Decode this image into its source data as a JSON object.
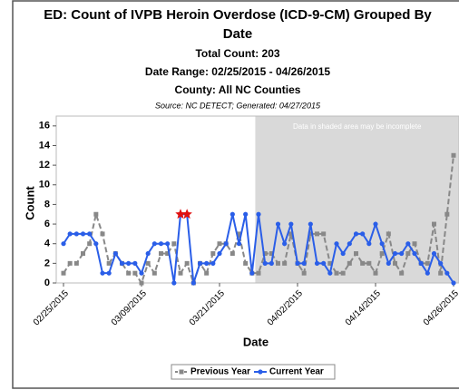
{
  "chart_data": {
    "type": "line",
    "title": "ED: Count of IVPB Heroin Overdose (ICD-9-CM) Grouped By",
    "title_line2": "Date",
    "subtitles": [
      "Total Count: 203",
      "Date Range: 02/25/2015 - 04/26/2015",
      "County: All NC Counties"
    ],
    "source": "Source: NC DETECT; Generated: 04/27/2015",
    "shade_label": "Data in shaded area may be incomplete",
    "shade_from": 30,
    "x_label": "Date",
    "y_label": "Count",
    "categories": [
      "02/25/2015",
      null,
      null,
      null,
      null,
      null,
      null,
      null,
      null,
      null,
      null,
      null,
      "03/09/2015",
      null,
      null,
      null,
      null,
      null,
      null,
      null,
      null,
      null,
      null,
      null,
      "03/21/2015",
      null,
      null,
      null,
      null,
      null,
      null,
      null,
      null,
      null,
      null,
      null,
      "04/02/2015",
      null,
      null,
      null,
      null,
      null,
      null,
      null,
      null,
      null,
      null,
      null,
      "04/14/2015",
      null,
      null,
      null,
      null,
      null,
      null,
      null,
      null,
      null,
      null,
      null,
      "04/26/2015"
    ],
    "series": [
      {
        "name": "Previous Year",
        "color": "#888888",
        "dashed": true,
        "marker": "square",
        "values": [
          1,
          2,
          2,
          3,
          4,
          7,
          5,
          2,
          3,
          2,
          1,
          1,
          0,
          2,
          1,
          3,
          3,
          4,
          1,
          2,
          0,
          2,
          1,
          3,
          4,
          4,
          3,
          5,
          2,
          1,
          1,
          3,
          3,
          2,
          2,
          5,
          2,
          1,
          5,
          5,
          5,
          2,
          1,
          1,
          2,
          3,
          2,
          2,
          1,
          3,
          5,
          2,
          1,
          3,
          4,
          2,
          2,
          6,
          1,
          7,
          13
        ]
      },
      {
        "name": "Current Year",
        "color": "#2a5ee8",
        "dashed": false,
        "marker": "circle",
        "alerts": [
          18,
          19
        ],
        "values": [
          4,
          5,
          5,
          5,
          5,
          4,
          1,
          1,
          3,
          2,
          2,
          2,
          1,
          3,
          4,
          4,
          4,
          0,
          7,
          7,
          0,
          2,
          2,
          2,
          3,
          4,
          7,
          4,
          7,
          1,
          7,
          2,
          2,
          6,
          4,
          6,
          2,
          2,
          6,
          2,
          2,
          1,
          4,
          3,
          4,
          5,
          5,
          4,
          6,
          4,
          2,
          3,
          3,
          4,
          3,
          2,
          1,
          3,
          2,
          1,
          0
        ]
      }
    ],
    "ylim": [
      0,
      17
    ],
    "yticks": [
      0,
      2,
      4,
      6,
      8,
      10,
      12,
      14,
      16
    ],
    "legend": "bottom"
  }
}
